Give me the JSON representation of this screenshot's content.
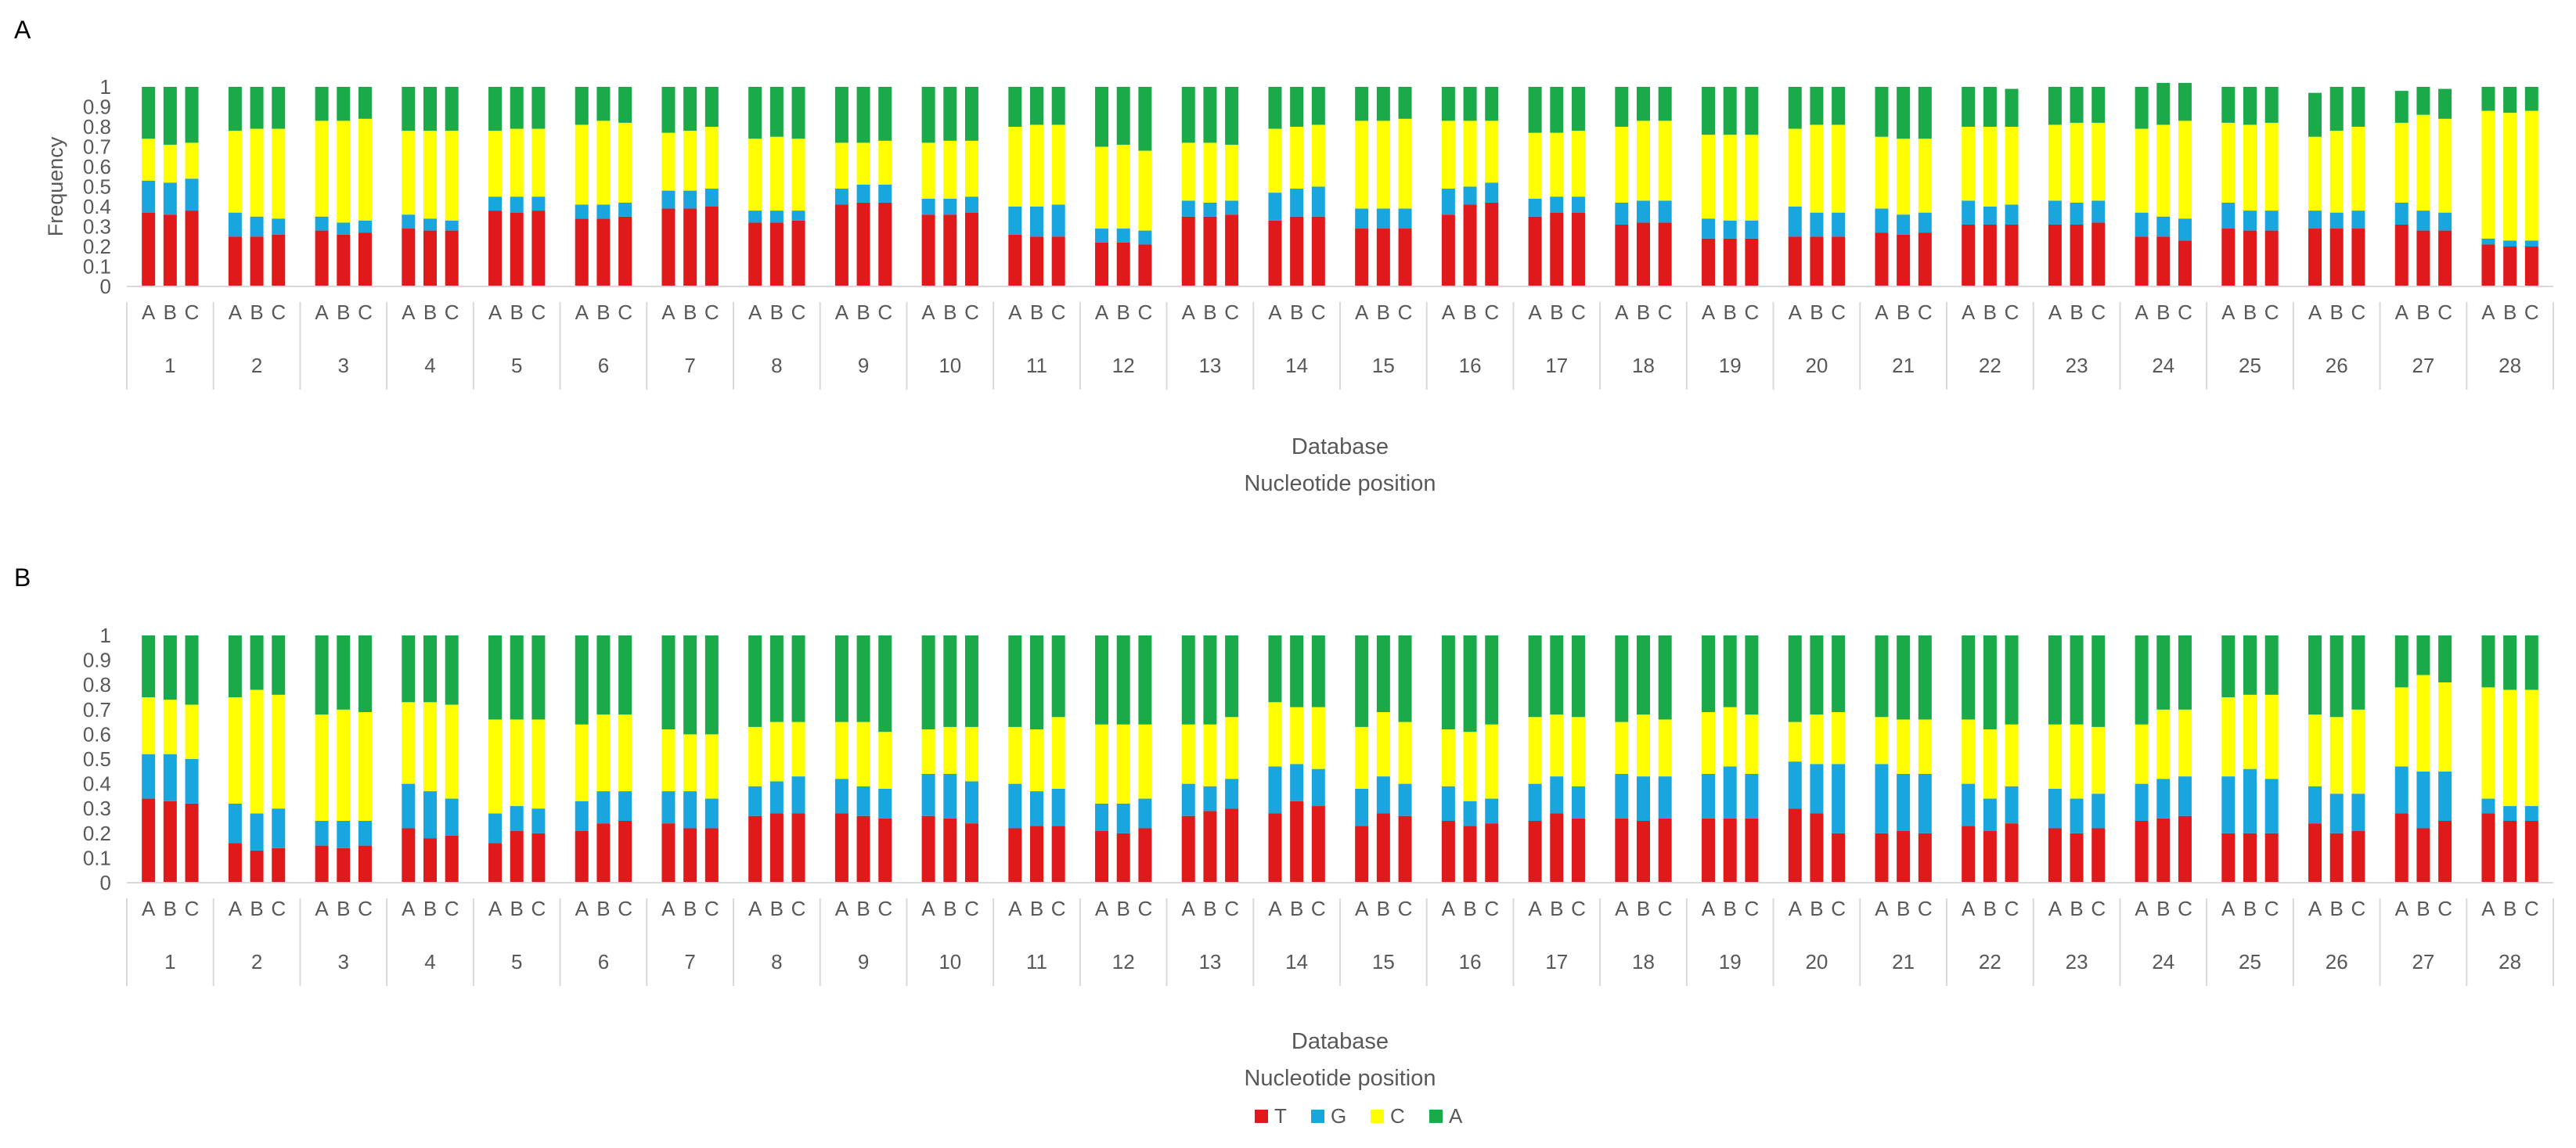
{
  "chart_data": [
    {
      "type": "bar",
      "stacked": true,
      "panel_label": "A",
      "ylabel": "Frequency",
      "xlabel_lines": [
        "Database",
        "Nucleotide position"
      ],
      "ylim": [
        0,
        1
      ],
      "yticks": [
        "0",
        "0.1",
        "0.2",
        "0.3",
        "0.4",
        "0.5",
        "0.6",
        "0.7",
        "0.8",
        "0.9",
        "1"
      ],
      "groups": [
        "1",
        "2",
        "3",
        "4",
        "5",
        "6",
        "7",
        "8",
        "9",
        "10",
        "11",
        "12",
        "13",
        "14",
        "15",
        "16",
        "17",
        "18",
        "19",
        "20",
        "21",
        "22",
        "23",
        "24",
        "25",
        "26",
        "27",
        "28"
      ],
      "subcategories": [
        "A",
        "B",
        "C"
      ],
      "series": [
        {
          "name": "T",
          "values": [
            0.37,
            0.36,
            0.38,
            0.25,
            0.25,
            0.26,
            0.28,
            0.26,
            0.27,
            0.29,
            0.28,
            0.28,
            0.38,
            0.37,
            0.38,
            0.34,
            0.34,
            0.35,
            0.39,
            0.39,
            0.4,
            0.32,
            0.32,
            0.33,
            0.41,
            0.42,
            0.42,
            0.36,
            0.36,
            0.37,
            0.26,
            0.25,
            0.25,
            0.22,
            0.22,
            0.21,
            0.35,
            0.35,
            0.36,
            0.33,
            0.35,
            0.35,
            0.29,
            0.29,
            0.29,
            0.36,
            0.41,
            0.42,
            0.35,
            0.37,
            0.37,
            0.31,
            0.32,
            0.32,
            0.24,
            0.24,
            0.24,
            0.25,
            0.25,
            0.25,
            0.27,
            0.26,
            0.27,
            0.31,
            0.31,
            0.31,
            0.31,
            0.31,
            0.32,
            0.25,
            0.25,
            0.23,
            0.29,
            0.28,
            0.28,
            0.29,
            0.29,
            0.29,
            0.31,
            0.28,
            0.28,
            0.21,
            0.2,
            0.2
          ]
        },
        {
          "name": "G",
          "values": [
            0.16,
            0.16,
            0.16,
            0.12,
            0.1,
            0.08,
            0.07,
            0.06,
            0.06,
            0.07,
            0.06,
            0.05,
            0.07,
            0.08,
            0.07,
            0.07,
            0.07,
            0.07,
            0.09,
            0.09,
            0.09,
            0.06,
            0.06,
            0.05,
            0.08,
            0.09,
            0.09,
            0.08,
            0.08,
            0.08,
            0.14,
            0.15,
            0.16,
            0.07,
            0.07,
            0.07,
            0.08,
            0.07,
            0.07,
            0.14,
            0.14,
            0.15,
            0.1,
            0.1,
            0.1,
            0.13,
            0.09,
            0.1,
            0.09,
            0.08,
            0.08,
            0.11,
            0.11,
            0.11,
            0.1,
            0.09,
            0.09,
            0.15,
            0.12,
            0.12,
            0.12,
            0.1,
            0.1,
            0.12,
            0.09,
            0.1,
            0.12,
            0.11,
            0.11,
            0.12,
            0.1,
            0.11,
            0.13,
            0.1,
            0.1,
            0.09,
            0.08,
            0.09,
            0.11,
            0.1,
            0.09,
            0.03,
            0.03,
            0.03
          ]
        },
        {
          "name": "C",
          "values": [
            0.21,
            0.19,
            0.18,
            0.41,
            0.44,
            0.45,
            0.48,
            0.51,
            0.51,
            0.42,
            0.44,
            0.45,
            0.33,
            0.34,
            0.34,
            0.4,
            0.42,
            0.4,
            0.29,
            0.3,
            0.31,
            0.36,
            0.37,
            0.36,
            0.23,
            0.21,
            0.22,
            0.28,
            0.29,
            0.28,
            0.4,
            0.41,
            0.4,
            0.41,
            0.42,
            0.4,
            0.29,
            0.3,
            0.28,
            0.32,
            0.31,
            0.31,
            0.44,
            0.44,
            0.45,
            0.34,
            0.33,
            0.31,
            0.33,
            0.32,
            0.33,
            0.38,
            0.4,
            0.4,
            0.42,
            0.43,
            0.43,
            0.39,
            0.44,
            0.44,
            0.36,
            0.38,
            0.37,
            0.37,
            0.4,
            0.39,
            0.38,
            0.4,
            0.39,
            0.42,
            0.46,
            0.49,
            0.4,
            0.43,
            0.44,
            0.37,
            0.41,
            0.42,
            0.4,
            0.48,
            0.47,
            0.64,
            0.64,
            0.65
          ]
        },
        {
          "name": "A",
          "values": [
            0.26,
            0.29,
            0.28,
            0.22,
            0.21,
            0.21,
            0.17,
            0.17,
            0.16,
            0.22,
            0.22,
            0.22,
            0.22,
            0.21,
            0.21,
            0.19,
            0.17,
            0.18,
            0.23,
            0.22,
            0.2,
            0.26,
            0.25,
            0.26,
            0.28,
            0.28,
            0.27,
            0.28,
            0.27,
            0.27,
            0.2,
            0.19,
            0.19,
            0.3,
            0.29,
            0.32,
            0.28,
            0.28,
            0.29,
            0.21,
            0.2,
            0.19,
            0.17,
            0.17,
            0.16,
            0.17,
            0.17,
            0.17,
            0.23,
            0.23,
            0.22,
            0.2,
            0.17,
            0.17,
            0.24,
            0.24,
            0.24,
            0.21,
            0.19,
            0.19,
            0.25,
            0.26,
            0.26,
            0.2,
            0.2,
            0.19,
            0.19,
            0.18,
            0.18,
            0.21,
            0.21,
            0.19,
            0.18,
            0.19,
            0.18,
            0.22,
            0.22,
            0.2,
            0.16,
            0.14,
            0.15,
            0.12,
            0.13,
            0.12
          ]
        }
      ]
    },
    {
      "type": "bar",
      "stacked": true,
      "panel_label": "B",
      "ylabel": "",
      "xlabel_lines": [
        "Database",
        "Nucleotide position"
      ],
      "ylim": [
        0,
        1
      ],
      "yticks": [
        "0",
        "0.1",
        "0.2",
        "0.3",
        "0.4",
        "0.5",
        "0.6",
        "0.7",
        "0.8",
        "0.9",
        "1"
      ],
      "groups": [
        "1",
        "2",
        "3",
        "4",
        "5",
        "6",
        "7",
        "8",
        "9",
        "10",
        "11",
        "12",
        "13",
        "14",
        "15",
        "16",
        "17",
        "18",
        "19",
        "20",
        "21",
        "22",
        "23",
        "24",
        "25",
        "26",
        "27",
        "28"
      ],
      "subcategories": [
        "A",
        "B",
        "C"
      ],
      "series": [
        {
          "name": "T",
          "values": [
            0.34,
            0.33,
            0.32,
            0.16,
            0.13,
            0.14,
            0.15,
            0.14,
            0.15,
            0.22,
            0.18,
            0.19,
            0.16,
            0.21,
            0.2,
            0.21,
            0.24,
            0.25,
            0.24,
            0.22,
            0.22,
            0.27,
            0.28,
            0.28,
            0.28,
            0.27,
            0.26,
            0.27,
            0.26,
            0.24,
            0.22,
            0.23,
            0.23,
            0.21,
            0.2,
            0.22,
            0.27,
            0.29,
            0.3,
            0.28,
            0.33,
            0.31,
            0.23,
            0.28,
            0.27,
            0.25,
            0.23,
            0.24,
            0.25,
            0.28,
            0.26,
            0.26,
            0.25,
            0.26,
            0.26,
            0.26,
            0.26,
            0.3,
            0.28,
            0.2,
            0.2,
            0.21,
            0.2,
            0.23,
            0.21,
            0.24,
            0.22,
            0.2,
            0.22,
            0.25,
            0.26,
            0.27,
            0.2,
            0.2,
            0.2,
            0.24,
            0.2,
            0.21,
            0.28,
            0.22,
            0.25,
            0.28,
            0.25,
            0.25
          ]
        },
        {
          "name": "G",
          "values": [
            0.18,
            0.19,
            0.18,
            0.16,
            0.15,
            0.16,
            0.1,
            0.11,
            0.1,
            0.18,
            0.19,
            0.15,
            0.12,
            0.1,
            0.1,
            0.12,
            0.13,
            0.12,
            0.13,
            0.15,
            0.12,
            0.12,
            0.13,
            0.15,
            0.14,
            0.12,
            0.12,
            0.17,
            0.18,
            0.17,
            0.18,
            0.14,
            0.15,
            0.11,
            0.12,
            0.12,
            0.13,
            0.1,
            0.12,
            0.19,
            0.15,
            0.15,
            0.15,
            0.15,
            0.13,
            0.14,
            0.1,
            0.1,
            0.15,
            0.15,
            0.13,
            0.18,
            0.18,
            0.17,
            0.18,
            0.21,
            0.18,
            0.19,
            0.2,
            0.28,
            0.28,
            0.23,
            0.24,
            0.17,
            0.13,
            0.15,
            0.16,
            0.14,
            0.14,
            0.15,
            0.16,
            0.16,
            0.23,
            0.26,
            0.22,
            0.15,
            0.16,
            0.15,
            0.19,
            0.23,
            0.2,
            0.06,
            0.06,
            0.06
          ]
        },
        {
          "name": "C",
          "values": [
            0.23,
            0.22,
            0.22,
            0.43,
            0.5,
            0.46,
            0.43,
            0.45,
            0.44,
            0.33,
            0.36,
            0.38,
            0.38,
            0.35,
            0.36,
            0.31,
            0.31,
            0.31,
            0.25,
            0.23,
            0.26,
            0.24,
            0.24,
            0.22,
            0.23,
            0.26,
            0.23,
            0.18,
            0.19,
            0.22,
            0.23,
            0.25,
            0.29,
            0.32,
            0.32,
            0.3,
            0.24,
            0.25,
            0.25,
            0.26,
            0.23,
            0.25,
            0.25,
            0.26,
            0.25,
            0.23,
            0.28,
            0.3,
            0.27,
            0.25,
            0.28,
            0.21,
            0.25,
            0.23,
            0.25,
            0.24,
            0.24,
            0.16,
            0.2,
            0.21,
            0.19,
            0.22,
            0.22,
            0.26,
            0.28,
            0.25,
            0.26,
            0.3,
            0.27,
            0.24,
            0.28,
            0.27,
            0.32,
            0.3,
            0.34,
            0.29,
            0.31,
            0.34,
            0.32,
            0.39,
            0.36,
            0.45,
            0.47,
            0.47
          ]
        },
        {
          "name": "A",
          "values": [
            0.25,
            0.26,
            0.28,
            0.25,
            0.22,
            0.24,
            0.32,
            0.3,
            0.31,
            0.27,
            0.27,
            0.28,
            0.34,
            0.34,
            0.34,
            0.36,
            0.32,
            0.32,
            0.38,
            0.4,
            0.4,
            0.37,
            0.35,
            0.35,
            0.35,
            0.35,
            0.39,
            0.38,
            0.37,
            0.37,
            0.37,
            0.38,
            0.33,
            0.36,
            0.36,
            0.36,
            0.36,
            0.36,
            0.33,
            0.27,
            0.29,
            0.29,
            0.37,
            0.31,
            0.35,
            0.38,
            0.39,
            0.36,
            0.33,
            0.32,
            0.33,
            0.35,
            0.32,
            0.34,
            0.31,
            0.29,
            0.32,
            0.35,
            0.32,
            0.31,
            0.33,
            0.34,
            0.34,
            0.34,
            0.38,
            0.36,
            0.36,
            0.36,
            0.37,
            0.36,
            0.3,
            0.3,
            0.25,
            0.24,
            0.24,
            0.32,
            0.33,
            0.3,
            0.21,
            0.16,
            0.19,
            0.21,
            0.22,
            0.22
          ]
        }
      ]
    }
  ],
  "legend": {
    "items": [
      {
        "name": "T",
        "color": "#e0191b"
      },
      {
        "name": "G",
        "color": "#19a6de"
      },
      {
        "name": "C",
        "color": "#ffff00"
      },
      {
        "name": "A",
        "color": "#1aaa4a"
      }
    ]
  }
}
